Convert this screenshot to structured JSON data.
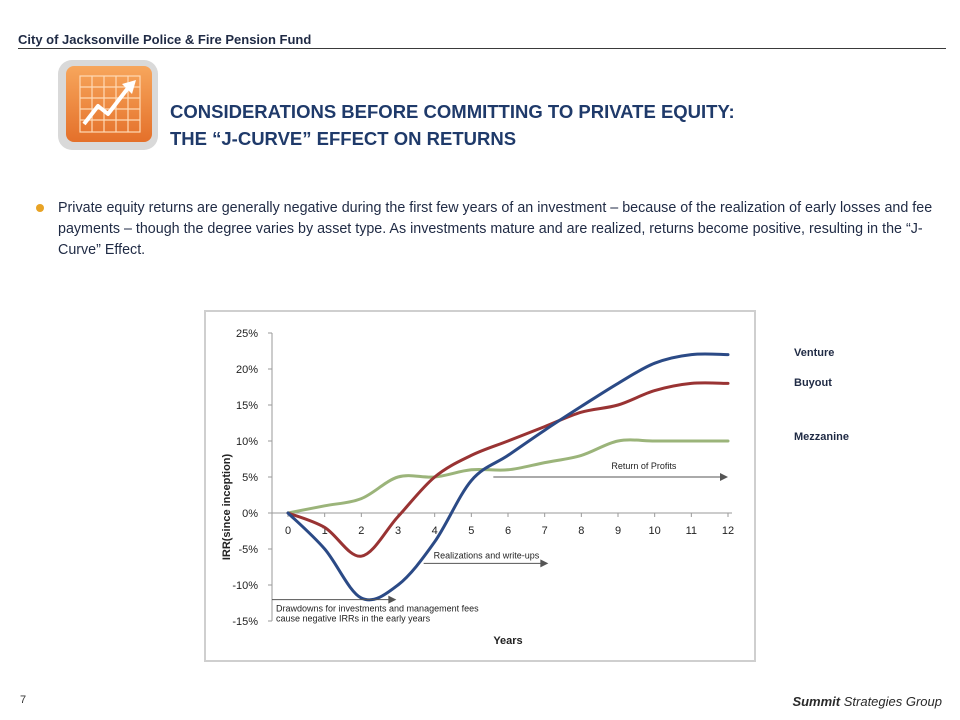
{
  "header": {
    "org": "City of Jacksonville Police & Fire Pension Fund"
  },
  "title": {
    "line1": "CONSIDERATIONS BEFORE COMMITTING TO PRIVATE EQUITY:",
    "line2": "THE “J-CURVE” EFFECT ON RETURNS"
  },
  "bullet": {
    "text": "Private equity returns are generally negative during the first few years of an investment – because of the realization of early losses and fee payments – though the degree varies by asset type.  As investments mature and are realized, returns become positive, resulting in the “J-Curve” Effect."
  },
  "colors": {
    "accent": "#e8a325",
    "icon_orange": "#f0883a",
    "title_blue": "#1f3a6a"
  },
  "icon": "rising-chart-icon",
  "chart_data": {
    "type": "line",
    "xlabel": "Years",
    "ylabel": "IRR(since inception)",
    "x": [
      0,
      1,
      2,
      3,
      4,
      5,
      6,
      7,
      8,
      9,
      10,
      11,
      12
    ],
    "xlim": [
      0,
      12
    ],
    "ylim": [
      -15,
      25
    ],
    "yticks": [
      25,
      20,
      15,
      10,
      5,
      0,
      -5,
      -10,
      -15
    ],
    "ytick_labels": [
      "25%",
      "20%",
      "15%",
      "10%",
      "5%",
      "0%",
      "-5%",
      "-10%",
      "-15%"
    ],
    "xtick_labels": [
      "0",
      "1",
      "2",
      "3",
      "4",
      "5",
      "6",
      "7",
      "8",
      "9",
      "10",
      "11",
      "12"
    ],
    "series": [
      {
        "name": "Venture",
        "color": "#2b4a86",
        "values": [
          0,
          -5,
          -11.8,
          -10,
          -4,
          4.5,
          8,
          11.5,
          14.8,
          18,
          20.8,
          22,
          22
        ]
      },
      {
        "name": "Buyout",
        "color": "#993333",
        "values": [
          0,
          -2,
          -6,
          -0.5,
          5,
          8,
          10,
          12,
          14,
          15,
          17,
          18,
          18
        ]
      },
      {
        "name": "Mezzanine",
        "color": "#9bb47a",
        "values": [
          0,
          1,
          2,
          5,
          5,
          6,
          6,
          7,
          8,
          10,
          10,
          10,
          10
        ]
      }
    ],
    "annotations": [
      {
        "text": "Return of Profits",
        "x_start": 5.6,
        "x_end": 12,
        "y": 5
      },
      {
        "text": "Realizations and write-ups",
        "x_start": 3.7,
        "x_end": 7.1,
        "y": -7
      },
      {
        "text": "Drawdowns for investments and management fees cause negative IRRs in the early years",
        "x_start": -0.5,
        "x_end": 5.9,
        "y": -13
      }
    ],
    "legend_position": "right"
  },
  "footer": {
    "page": "7",
    "brand_bold": "Summit",
    "brand_rest": " Strategies Group"
  }
}
